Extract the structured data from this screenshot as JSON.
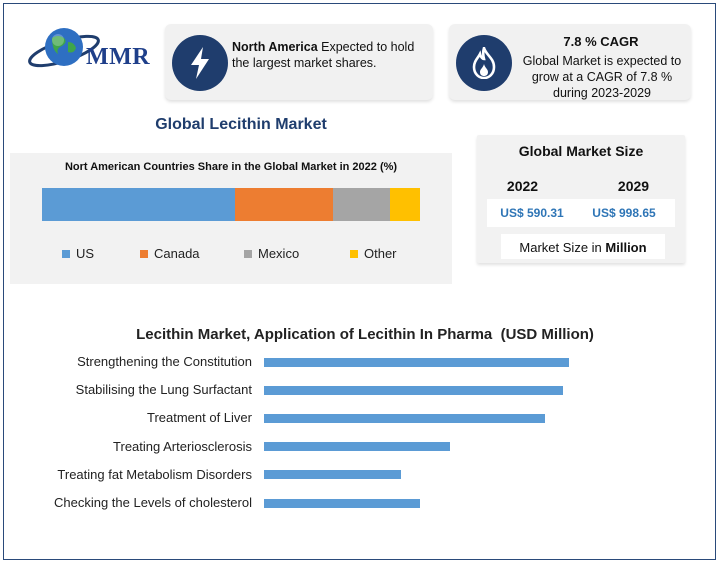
{
  "logo": {
    "text": "MMR"
  },
  "card_na": {
    "region": "North America",
    "text": " Expected to hold the largest market shares."
  },
  "card_cagr": {
    "title": "7.8 % CAGR",
    "text": "Global Market is expected to grow at a CAGR of 7.8 % during 2023-2029"
  },
  "main_title": "Global Lecithin Market",
  "market_size": {
    "title": "Global Market Size",
    "year_1": "2022",
    "year_2": "2029",
    "value_1": "US$ 590.31",
    "value_2": "US$ 998.65",
    "unit_prefix": "Market Size in ",
    "unit_bold": "Million"
  },
  "chart_data": [
    {
      "type": "bar",
      "orientation": "stacked-horizontal",
      "title": "Nort American Countries Share in the Global Market in 2022 (%)",
      "legend_position": "bottom",
      "series": [
        {
          "name": "US",
          "value": 51,
          "color": "#5b9bd5"
        },
        {
          "name": "Canada",
          "value": 26,
          "color": "#ed7d31"
        },
        {
          "name": "Mexico",
          "value": 15,
          "color": "#a5a5a5"
        },
        {
          "name": "Other",
          "value": 8,
          "color": "#ffc000"
        }
      ]
    },
    {
      "type": "bar",
      "orientation": "horizontal",
      "title": "Lecithin Market, Application of Lecithin In Pharma  (USD Million)",
      "color": "#5b9bd5",
      "grid": false,
      "categories": [
        "Strengthening the Constitution",
        "Stabilising the Lung Surfactant",
        "Treatment of Liver",
        "Treating Arteriosclerosis",
        "Treating fat Metabolism Disorders",
        "Checking the Levels of cholesterol"
      ],
      "values": [
        100,
        98,
        92,
        61,
        45,
        51
      ],
      "xlim": [
        0,
        100
      ]
    }
  ]
}
